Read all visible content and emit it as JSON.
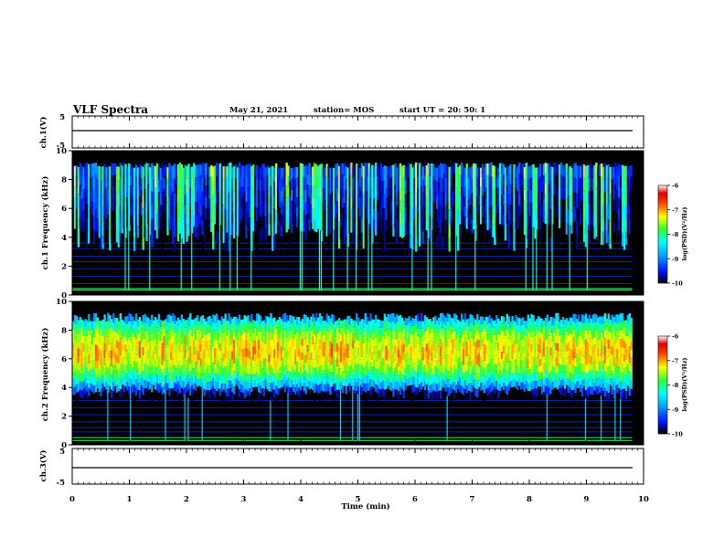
{
  "header": {
    "title": "VLF Spectra",
    "date": "May 21, 2021",
    "station": "station= MOS",
    "start": "start  UT =  20: 50: 1"
  },
  "chart_data": [
    {
      "type": "line",
      "panel": "ch1-waveform",
      "ylabel": "ch.1(V)",
      "ylim": [
        -5,
        5
      ],
      "yticks": [
        "5",
        "-5"
      ],
      "x": [
        0,
        10
      ],
      "values": [
        0,
        0
      ]
    },
    {
      "type": "heatmap",
      "panel": "ch1-spectrogram",
      "ylabel": "ch.1 Frequency (kHz)",
      "xlim": [
        0,
        10
      ],
      "ylim": [
        0,
        10
      ],
      "yticks": [
        "0",
        "2",
        "4",
        "6",
        "8",
        "10"
      ],
      "colorbar": {
        "label": "log(PSD)(V²/Hz)",
        "range": [
          -10,
          -6
        ],
        "ticks": [
          "-6",
          "-7",
          "-8",
          "-9",
          "-10"
        ]
      },
      "bands": [
        {
          "freq_khz": [
            4.0,
            9.0
          ],
          "typical_log_psd": -8.6,
          "note": "vertical impulsive streaks"
        },
        {
          "freq_khz": [
            0.3,
            0.5
          ],
          "typical_log_psd": -8.5
        }
      ]
    },
    {
      "type": "heatmap",
      "panel": "ch2-spectrogram",
      "ylabel": "ch.2 Frequency (kHz)",
      "xlim": [
        0,
        10
      ],
      "ylim": [
        0,
        10
      ],
      "yticks": [
        "0",
        "2",
        "4",
        "6",
        "8",
        "10"
      ],
      "colorbar": {
        "label": "log(PSD)(V²/Hz)",
        "range": [
          -10,
          -6
        ],
        "ticks": [
          "-6",
          "-7",
          "-8",
          "-9",
          "-10"
        ]
      },
      "bands": [
        {
          "freq_khz": [
            3.5,
            9.0
          ],
          "typical_log_psd": -7.8
        },
        {
          "freq_khz": [
            5.5,
            7.5
          ],
          "typical_log_psd": -7.0
        }
      ]
    },
    {
      "type": "line",
      "panel": "ch3-waveform",
      "ylabel": "ch.3(V)",
      "ylim": [
        -5,
        5
      ],
      "yticks": [
        "5",
        "-5"
      ],
      "x": [
        0,
        10
      ],
      "values": [
        0,
        0
      ]
    }
  ],
  "xaxis": {
    "label": "Time  (min)",
    "range": [
      0,
      10
    ],
    "ticks": [
      "0",
      "1",
      "2",
      "3",
      "4",
      "5",
      "6",
      "7",
      "8",
      "9",
      "10"
    ]
  }
}
